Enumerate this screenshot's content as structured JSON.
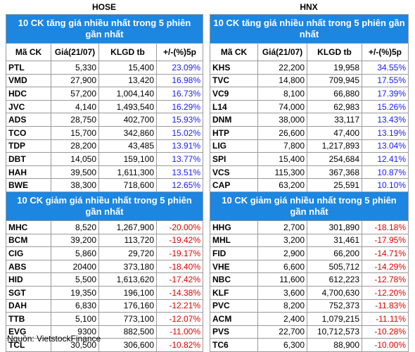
{
  "hose": {
    "title": "HOSE",
    "gainers_heading": "10 CK tăng giá nhiều nhất trong 5 phiên gần nhất",
    "losers_heading": "10 CK giảm giá nhiều nhất trong 5 phiên gần nhất",
    "gainers": [
      {
        "code": "PTL",
        "price": "5,330",
        "volume": "15,400",
        "change": "23.09%"
      },
      {
        "code": "VMD",
        "price": "27,900",
        "volume": "13,420",
        "change": "16.98%"
      },
      {
        "code": "HDC",
        "price": "57,200",
        "volume": "1,004,140",
        "change": "16.73%"
      },
      {
        "code": "JVC",
        "price": "4,140",
        "volume": "1,493,540",
        "change": "16.29%"
      },
      {
        "code": "ADS",
        "price": "28,750",
        "volume": "402,700",
        "change": "15.93%"
      },
      {
        "code": "TCO",
        "price": "15,700",
        "volume": "342,860",
        "change": "15.02%"
      },
      {
        "code": "TDP",
        "price": "28,200",
        "volume": "43,485",
        "change": "13.91%"
      },
      {
        "code": "DBT",
        "price": "14,050",
        "volume": "159,100",
        "change": "13.77%"
      },
      {
        "code": "HAH",
        "price": "39,500",
        "volume": "1,611,300",
        "change": "13.51%"
      },
      {
        "code": "BWE",
        "price": "38,300",
        "volume": "718,600",
        "change": "12.65%"
      }
    ],
    "losers": [
      {
        "code": "MHC",
        "price": "8,520",
        "volume": "1,267,900",
        "change": "-20.00%"
      },
      {
        "code": "BCM",
        "price": "39,200",
        "volume": "113,720",
        "change": "-19.42%"
      },
      {
        "code": "CIG",
        "price": "5,860",
        "volume": "29,720",
        "change": "-19.17%"
      },
      {
        "code": "ABS",
        "price": "20400",
        "volume": "373,180",
        "change": "-18.40%"
      },
      {
        "code": "HID",
        "price": "5,500",
        "volume": "1,613,620",
        "change": "-17.42%"
      },
      {
        "code": "SGT",
        "price": "19,350",
        "volume": "196,100",
        "change": "-14.38%"
      },
      {
        "code": "DAH",
        "price": "6,830",
        "volume": "176,160",
        "change": "-12.21%"
      },
      {
        "code": "TTB",
        "price": "5,100",
        "volume": "773,100",
        "change": "-12.07%"
      },
      {
        "code": "EVG",
        "price": "9300",
        "volume": "882,500",
        "change": "-11.00%"
      },
      {
        "code": "TCL",
        "price": "30,500",
        "volume": "306,600",
        "change": "-10.82%"
      }
    ]
  },
  "hnx": {
    "title": "HNX",
    "gainers_heading": "10 CK tăng giá nhiều nhất trong 5 phiên gần nhất",
    "losers_heading": "10 CK giảm giá nhiều nhất trong 5 phiên gần nhất",
    "gainers": [
      {
        "code": "KHS",
        "price": "22,200",
        "volume": "19,958",
        "change": "34.55%"
      },
      {
        "code": "TVC",
        "price": "14,800",
        "volume": "709,945",
        "change": "17.55%"
      },
      {
        "code": "VC9",
        "price": "8,100",
        "volume": "66,880",
        "change": "17.39%"
      },
      {
        "code": "L14",
        "price": "74,000",
        "volume": "62,983",
        "change": "15.26%"
      },
      {
        "code": "DNM",
        "price": "38,000",
        "volume": "33,117",
        "change": "13.43%"
      },
      {
        "code": "HTP",
        "price": "26,600",
        "volume": "47,400",
        "change": "13.19%"
      },
      {
        "code": "LIG",
        "price": "7,800",
        "volume": "1,217,893",
        "change": "13.04%"
      },
      {
        "code": "SPI",
        "price": "15,400",
        "volume": "254,684",
        "change": "12.41%"
      },
      {
        "code": "VCS",
        "price": "115,300",
        "volume": "367,368",
        "change": "10.87%"
      },
      {
        "code": "CAP",
        "price": "63,200",
        "volume": "25,591",
        "change": "10.10%"
      }
    ],
    "losers": [
      {
        "code": "HHG",
        "price": "2,700",
        "volume": "301,890",
        "change": "-18.18%"
      },
      {
        "code": "MHL",
        "price": "3,200",
        "volume": "31,461",
        "change": "-17.95%"
      },
      {
        "code": "FID",
        "price": "2,900",
        "volume": "66,200",
        "change": "-14.71%"
      },
      {
        "code": "VHE",
        "price": "6,600",
        "volume": "505,712",
        "change": "-14.29%"
      },
      {
        "code": "NBC",
        "price": "11,600",
        "volume": "612,223",
        "change": "-12.78%"
      },
      {
        "code": "KLF",
        "price": "3,600",
        "volume": "4,700,630",
        "change": "-12.20%"
      },
      {
        "code": "PVC",
        "price": "8,200",
        "volume": "752,373",
        "change": "-11.83%"
      },
      {
        "code": "ACM",
        "price": "2,400",
        "volume": "1,079,215",
        "change": "-11.11%"
      },
      {
        "code": "PVS",
        "price": "22,700",
        "volume": "10,712,573",
        "change": "-10.28%"
      },
      {
        "code": "TC6",
        "price": "6,300",
        "volume": "88,900",
        "change": "-10.00%"
      }
    ]
  },
  "columns": {
    "code": "Mã CK",
    "price": "Giá(21/07)",
    "volume": "KLGD tb",
    "change": "+/-(%)5p"
  },
  "source": "Nguồn: VietstockFinance"
}
